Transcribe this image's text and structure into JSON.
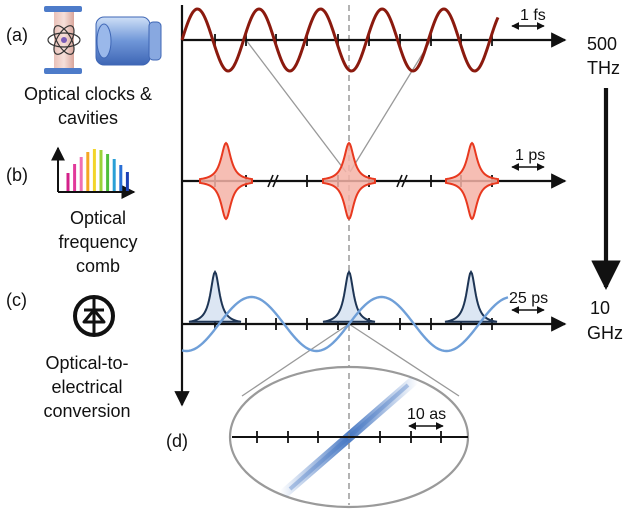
{
  "rows": [
    {
      "label": "(a)",
      "caption_lines": [
        "Optical clocks &",
        "cavities"
      ],
      "scale": "1 fs",
      "icon": "atom-clock-and-cavity-icon"
    },
    {
      "label": "(b)",
      "caption_lines": [
        "Optical",
        "frequency",
        "comb"
      ],
      "scale": "1 ps",
      "icon": "comb-spectrum-icon"
    },
    {
      "label": "(c)",
      "caption_lines": [
        "Optical-to-",
        "electrical",
        "conversion"
      ],
      "scale": "25 ps",
      "icon": "photodiode-icon"
    }
  ],
  "frequency_axis": {
    "top": [
      "500",
      "THz"
    ],
    "bottom": [
      "10",
      "GHz"
    ]
  },
  "inset": {
    "label": "(d)",
    "scale": "10 as"
  },
  "colors": {
    "optical_wave": "#8b1a0e",
    "comb_pulse": "#e8391f",
    "comb_fill": "#f5b3a7",
    "electrical_pulse": "#1e3555",
    "electrical_fill": "#dce6f3",
    "sine_wave": "#6f9fd8",
    "guide_lines": "#999999"
  }
}
